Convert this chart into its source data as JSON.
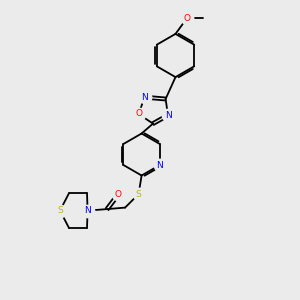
{
  "background_color": "#ebebeb",
  "bond_color": "#000000",
  "atom_colors": {
    "N": "#0000ff",
    "O": "#ff0000",
    "S": "#b8b800",
    "C": "#000000"
  },
  "figsize": [
    3.0,
    3.0
  ],
  "dpi": 100,
  "xlim": [
    0,
    10
  ],
  "ylim": [
    0,
    10
  ]
}
